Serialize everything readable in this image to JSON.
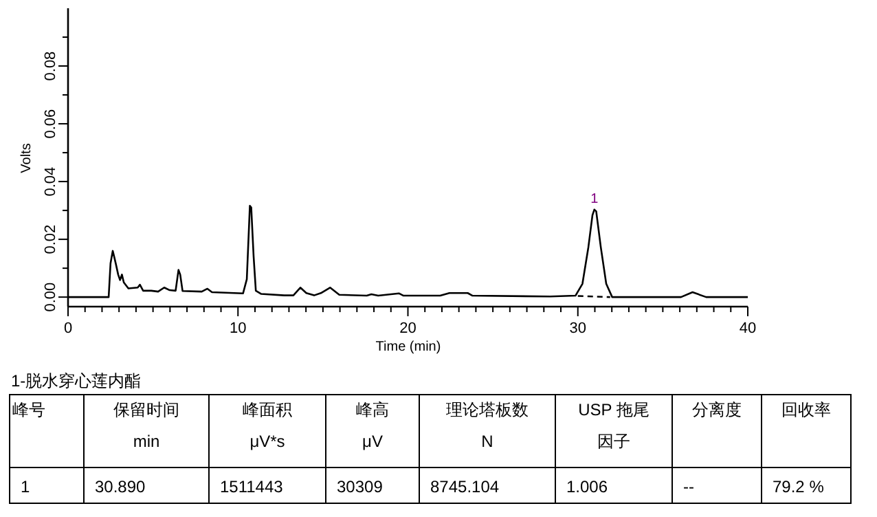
{
  "chart_data": {
    "type": "line",
    "xlabel": "Time (min)",
    "ylabel": "Volts",
    "xlim": [
      0,
      40
    ],
    "ylim": [
      -0.0033,
      0.1
    ],
    "xticks": [
      0,
      {
        "value": 1,
        "label": null
      },
      {
        "value": 2,
        "label": null
      },
      {
        "value": 3,
        "label": null
      },
      {
        "value": 4,
        "label": null
      },
      {
        "value": 5,
        "label": null
      },
      {
        "value": 6,
        "label": null
      },
      {
        "value": 7,
        "label": null
      },
      {
        "value": 8,
        "label": null
      },
      {
        "value": 9,
        "label": null
      },
      10,
      {
        "value": 11,
        "label": null
      },
      {
        "value": 12,
        "label": null
      },
      {
        "value": 13,
        "label": null
      },
      {
        "value": 14,
        "label": null
      },
      {
        "value": 15,
        "label": null
      },
      {
        "value": 16,
        "label": null
      },
      {
        "value": 17,
        "label": null
      },
      {
        "value": 18,
        "label": null
      },
      {
        "value": 19,
        "label": null
      },
      20,
      {
        "value": 21,
        "label": null
      },
      {
        "value": 22,
        "label": null
      },
      {
        "value": 23,
        "label": null
      },
      {
        "value": 24,
        "label": null
      },
      {
        "value": 25,
        "label": null
      },
      {
        "value": 26,
        "label": null
      },
      {
        "value": 27,
        "label": null
      },
      {
        "value": 28,
        "label": null
      },
      {
        "value": 29,
        "label": null
      },
      30,
      {
        "value": 31,
        "label": null
      },
      {
        "value": 32,
        "label": null
      },
      {
        "value": 33,
        "label": null
      },
      {
        "value": 34,
        "label": null
      },
      {
        "value": 35,
        "label": null
      },
      {
        "value": 36,
        "label": null
      },
      {
        "value": 37,
        "label": null
      },
      {
        "value": 38,
        "label": null
      },
      {
        "value": 39,
        "label": null
      },
      40
    ],
    "yticks": [
      {
        "value": 0,
        "label": "0.00"
      },
      {
        "value": 0.01,
        "label": null
      },
      {
        "value": 0.02,
        "label": "0.02"
      },
      {
        "value": 0.03,
        "label": null
      },
      {
        "value": 0.04,
        "label": "0.04"
      },
      {
        "value": 0.05,
        "label": null
      },
      {
        "value": 0.06,
        "label": "0.06"
      },
      {
        "value": 0.07,
        "label": null
      },
      {
        "value": 0.08,
        "label": "0.08"
      },
      {
        "value": 0.09,
        "label": null
      }
    ],
    "grid": false,
    "marker": "none",
    "series": [
      {
        "color": "#000000",
        "line_style": "solid",
        "x": [
          0,
          2.39,
          2.5,
          2.63,
          2.71,
          2.82,
          2.95,
          3.06,
          3.17,
          3.28,
          3.55,
          4.1,
          4.23,
          4.42,
          4.9,
          5.3,
          5.66,
          5.98,
          6.33,
          6.5,
          6.6,
          6.74,
          7.87,
          8.2,
          8.47,
          10.3,
          10.52,
          10.7,
          10.78,
          10.92,
          11.05,
          11.37,
          12.72,
          13.26,
          13.67,
          14.02,
          14.48,
          14.88,
          15.42,
          15.96,
          17.58,
          17.85,
          18.25,
          19.47,
          19.74,
          21.9,
          22.44,
          23.52,
          23.8,
          28.38,
          29.86,
          30.27,
          30.62,
          30.86,
          30.97,
          31.08,
          31.35,
          31.67,
          32.02,
          36.07,
          36.75,
          37.55,
          40
        ],
        "values": [
          0,
          0,
          0.0117,
          0.016,
          0.0141,
          0.0113,
          0.0078,
          0.0059,
          0.0078,
          0.0051,
          0.003,
          0.0033,
          0.0043,
          0.0022,
          0.0022,
          0.0019,
          0.0033,
          0.0024,
          0.0022,
          0.0094,
          0.0078,
          0.0021,
          0.0019,
          0.0029,
          0.0017,
          0.0013,
          0.0062,
          0.0316,
          0.031,
          0.0141,
          0.0022,
          0.0011,
          0.0006,
          0.0006,
          0.0033,
          0.0014,
          0.0006,
          0.0014,
          0.0033,
          0.0008,
          0.0005,
          0.001,
          0.0005,
          0.0013,
          0.0005,
          0.0005,
          0.0014,
          0.0014,
          0.0005,
          0.0002,
          0.0005,
          0.0046,
          0.0173,
          0.0284,
          0.0303,
          0.0297,
          0.0173,
          0.0046,
          0,
          0,
          0.0017,
          0,
          0
        ]
      },
      {
        "color": "#000000",
        "line_style": "dashed",
        "x": [
          30.0,
          31.9
        ],
        "values": [
          0.0004,
          0
        ]
      }
    ],
    "annotations": [
      {
        "text": "1",
        "x": 30.97,
        "y": 0.0303
      },
      "1-脱水穿心莲内酯",
      "峰号",
      "保留时间",
      "峰面积",
      "峰高",
      "理论塔板数",
      "USP 拖尾",
      "分离度",
      "回收率",
      "min",
      "μV*s",
      "μV",
      "N",
      "因子",
      "1",
      "30.890",
      "1511443",
      "30309",
      "8745.104",
      "1.006",
      "--",
      "79.2 %"
    ]
  }
}
